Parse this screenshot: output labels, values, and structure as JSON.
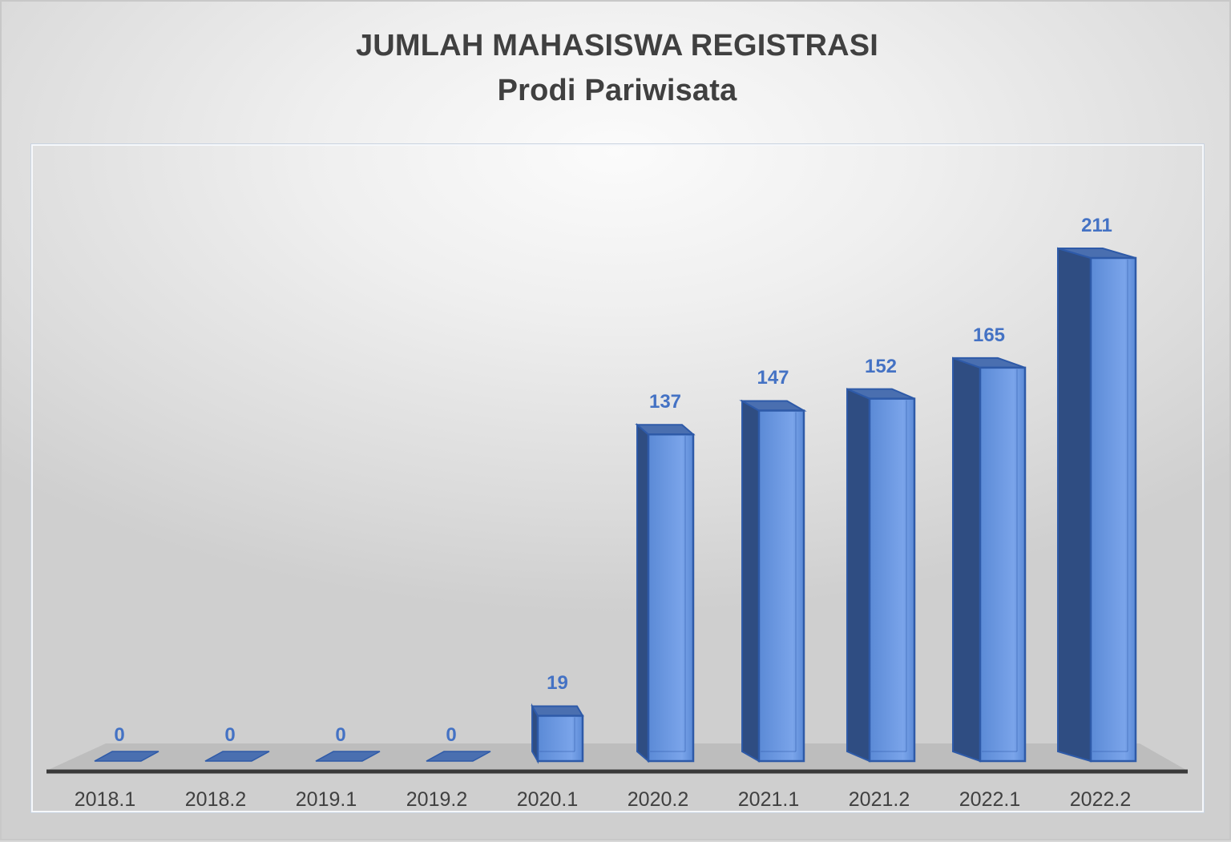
{
  "chart_data": {
    "type": "bar",
    "style": "3d-column",
    "title": "JUMLAH MAHASISWA REGISTRASI",
    "subtitle": "Prodi Pariwisata",
    "xlabel": "",
    "ylabel": "",
    "categories": [
      "2018.1",
      "2018.2",
      "2019.1",
      "2019.2",
      "2020.1",
      "2020.2",
      "2021.1",
      "2021.2",
      "2022.1",
      "2022.2"
    ],
    "values": [
      0,
      0,
      0,
      0,
      19,
      137,
      147,
      152,
      165,
      211
    ],
    "data_labels": [
      "0",
      "0",
      "0",
      "0",
      "19",
      "137",
      "147",
      "152",
      "165",
      "211"
    ],
    "grid": false,
    "legend": "none",
    "y_axis_visible": false,
    "colors": {
      "bar_front": "#5b8ad6",
      "bar_front_light": "#7aa4ea",
      "bar_side": "#2f4d82",
      "bar_top": "#4a6fb0",
      "bar_edge": "#2e5aa8",
      "label": "#4472c4",
      "floor": "#bdbdbd",
      "axis": "#3a3a3a",
      "text": "#404040"
    }
  }
}
